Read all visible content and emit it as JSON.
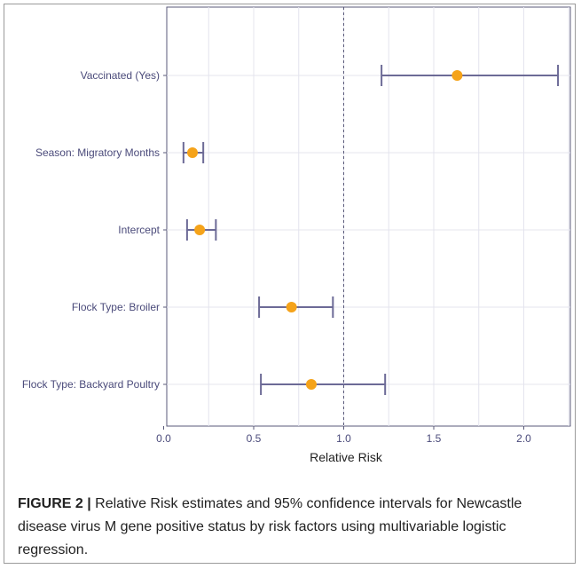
{
  "chart_data": {
    "type": "forest",
    "xlabel": "Relative Risk",
    "xlim": [
      0,
      2.25
    ],
    "x_ticks": [
      "0.0",
      "0.5",
      "1.0",
      "1.5",
      "2.0"
    ],
    "reference_line": 1.0,
    "grid": true,
    "rows": [
      {
        "label": "Vaccinated (Yes)",
        "estimate": 1.63,
        "lower": 1.21,
        "upper": 2.19
      },
      {
        "label": "Season: Migratory Months",
        "estimate": 0.16,
        "lower": 0.11,
        "upper": 0.22
      },
      {
        "label": "Intercept",
        "estimate": 0.2,
        "lower": 0.13,
        "upper": 0.29
      },
      {
        "label": "Flock Type: Broiler",
        "estimate": 0.71,
        "lower": 0.53,
        "upper": 0.94
      },
      {
        "label": "Flock Type: Backyard Poultry",
        "estimate": 0.82,
        "lower": 0.54,
        "upper": 1.23
      }
    ],
    "colors": {
      "point": "#f5a31a",
      "interval": "#6c6a96",
      "reference": "#5a5a7a",
      "grid": "#e4e4ee",
      "axis_text": "#4a4a7a"
    }
  },
  "caption": {
    "label": "FIGURE 2 |",
    "text": " Relative Risk estimates and 95% confidence intervals for Newcastle disease virus M gene positive status by risk factors using multivariable logistic regression."
  }
}
